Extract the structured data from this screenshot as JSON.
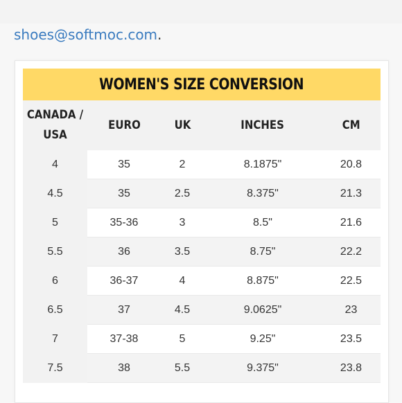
{
  "header": {
    "email": "shoes@softmoc.com",
    "trailing_punct": "."
  },
  "table": {
    "title": "WOMEN'S SIZE CONVERSION",
    "columns": [
      "CANADA / USA",
      "EURO",
      "UK",
      "INCHES",
      "CM"
    ],
    "rows": [
      [
        "4",
        "35",
        "2",
        "8.1875\"",
        "20.8"
      ],
      [
        "4.5",
        "35",
        "2.5",
        "8.375\"",
        "21.3"
      ],
      [
        "5",
        "35-36",
        "3",
        "8.5\"",
        "21.6"
      ],
      [
        "5.5",
        "36",
        "3.5",
        "8.75\"",
        "22.2"
      ],
      [
        "6",
        "36-37",
        "4",
        "8.875\"",
        "22.5"
      ],
      [
        "6.5",
        "37",
        "4.5",
        "9.0625\"",
        "23"
      ],
      [
        "7",
        "37-38",
        "5",
        "9.25\"",
        "23.5"
      ],
      [
        "7.5",
        "38",
        "5.5",
        "9.375\"",
        "23.8"
      ]
    ]
  },
  "colors": {
    "title_bar": "#ffd966",
    "link": "#3a7bbf",
    "shade": "#f2f2f2"
  }
}
